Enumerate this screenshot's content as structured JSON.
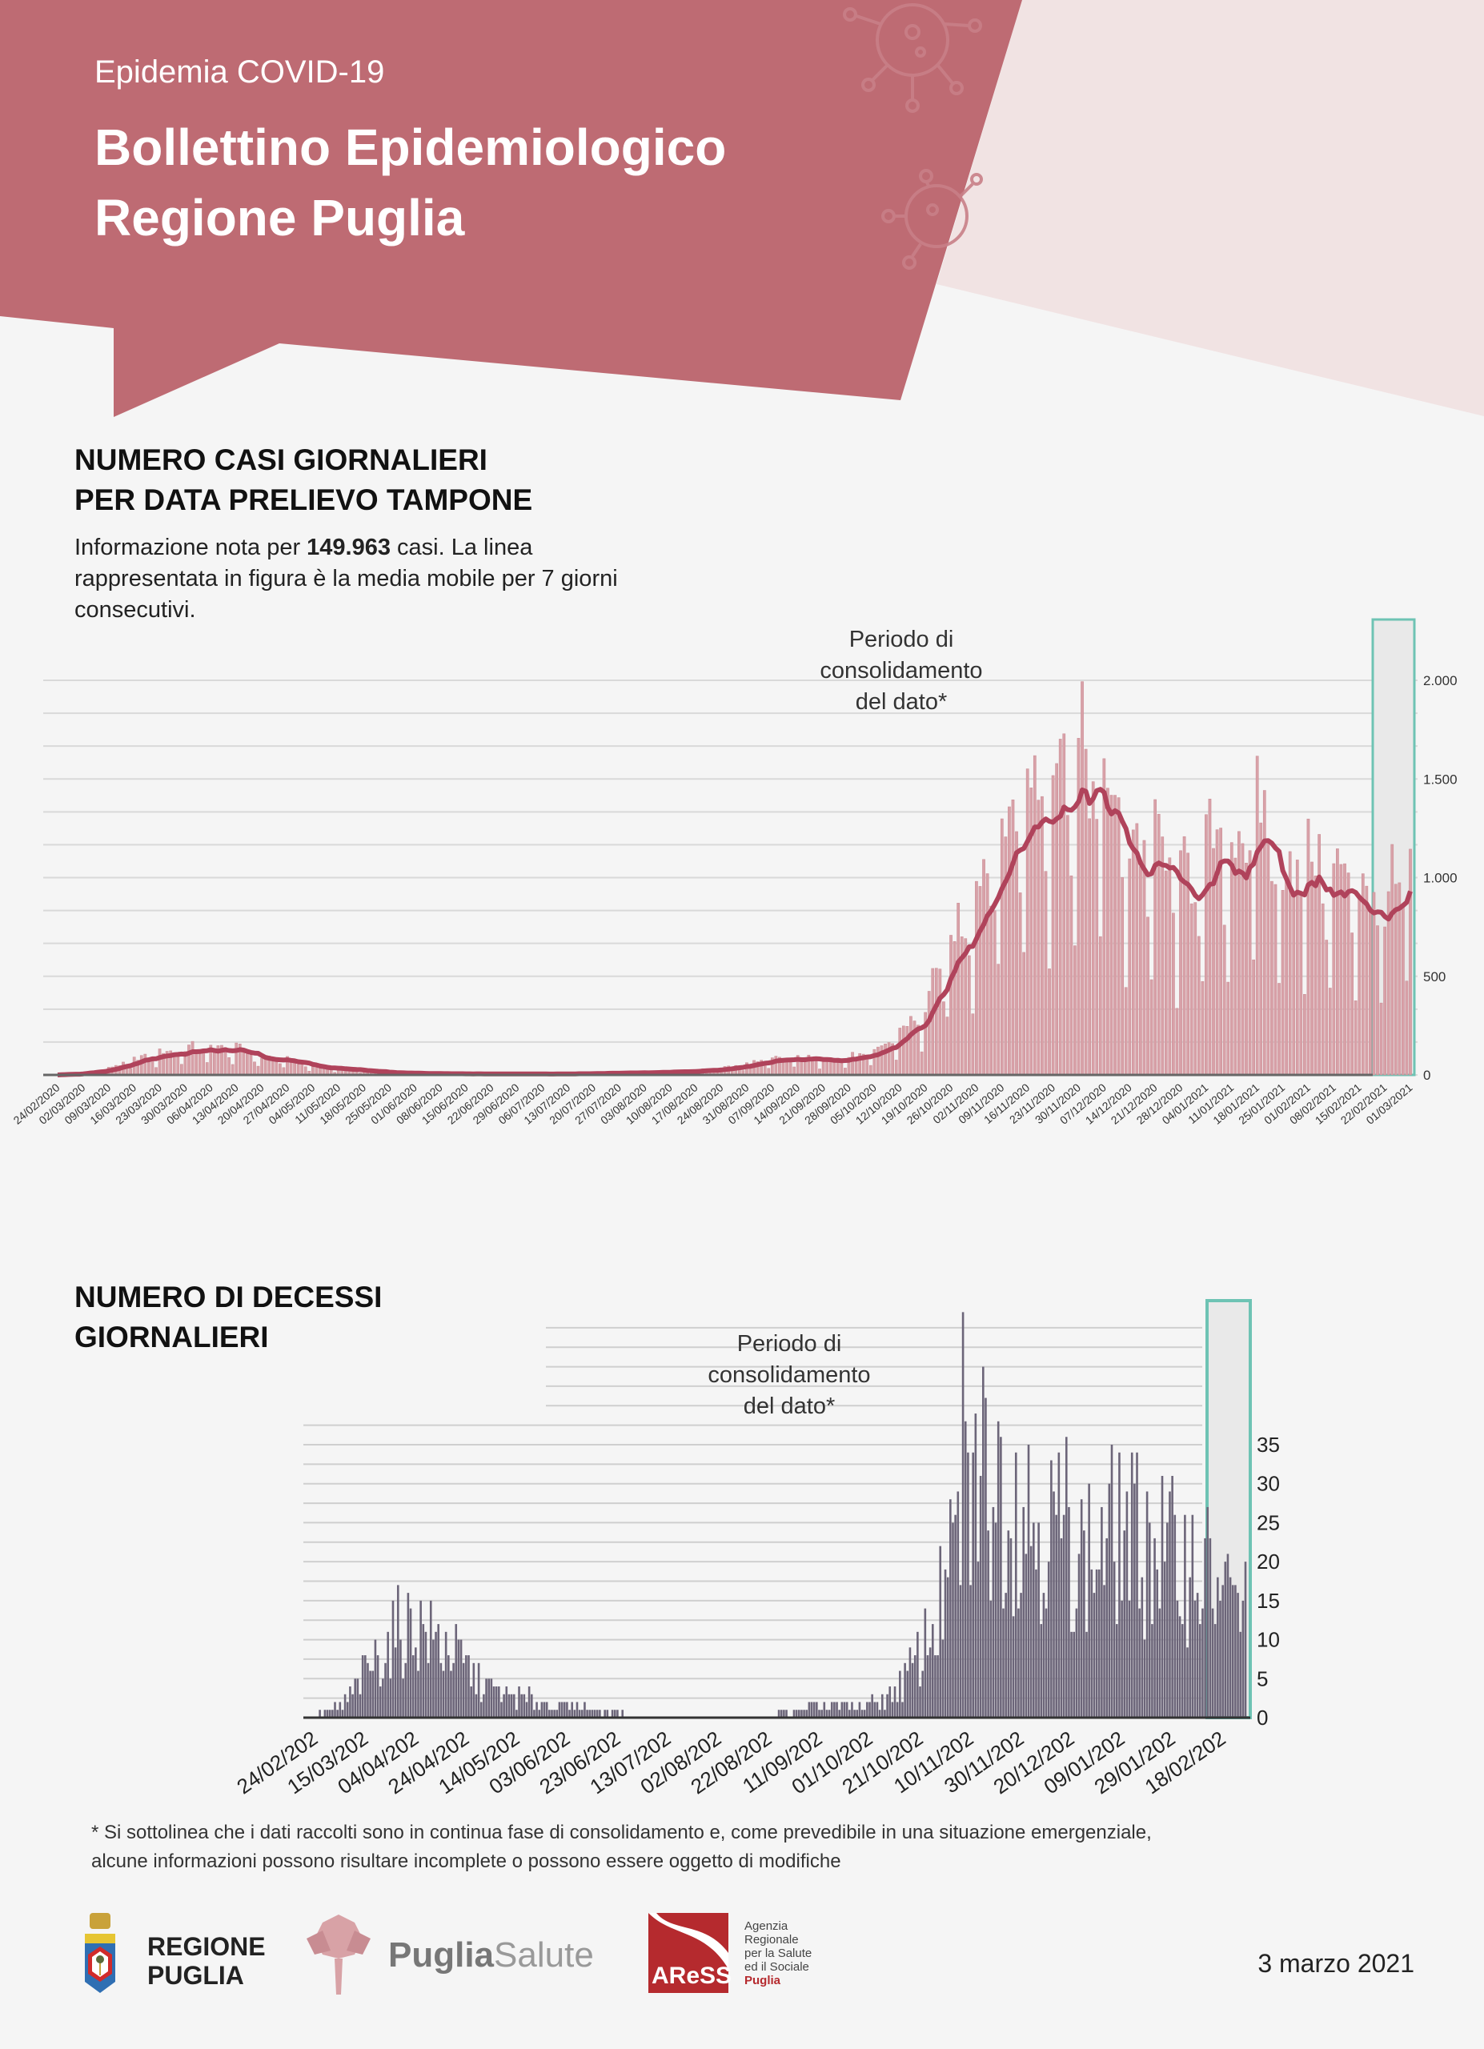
{
  "header": {
    "kicker": "Epidemia COVID-19",
    "title_line1": "Bollettino Epidemiologico",
    "title_line2": "Regione Puglia"
  },
  "colors": {
    "header_red": "#be6b73",
    "header_pink": "#f1e3e3",
    "background": "#f5f5f5",
    "cases_bar": "#d8a1a8",
    "cases_line": "#b0435b",
    "deaths_bar": "#6c6579",
    "consolidation_box": "#6ec3b4"
  },
  "cases_section": {
    "title_line1": "NUMERO CASI GIORNALIERI",
    "title_line2": "PER DATA PRELIEVO TAMPONE",
    "desc_prefix": "Informazione nota per ",
    "desc_total": "149.963",
    "desc_suffix": " casi. La linea rappresentata in figura è la media mobile per 7 giorni consecutivi.",
    "annotation": [
      "Periodo di",
      "consolidamento",
      "del dato*"
    ]
  },
  "deaths_section": {
    "title_line1": "NUMERO DI DECESSI",
    "title_line2": "GIORNALIERI",
    "annotation": [
      "Periodo di",
      "consolidamento",
      "del dato*"
    ]
  },
  "chart_data": [
    {
      "type": "bar",
      "title": "NUMERO CASI GIORNALIERI PER DATA PRELIEVO TAMPONE",
      "series_note": "daily bars with 7-day moving average line; weekly moving-average values (from 24/02/2020, step 7 days)",
      "start_date": "24/02/2020",
      "days": 372,
      "weekly_moving_average": [
        0,
        10,
        30,
        70,
        100,
        120,
        125,
        120,
        80,
        70,
        40,
        30,
        20,
        10,
        8,
        6,
        5,
        5,
        5,
        5,
        6,
        8,
        10,
        12,
        15,
        20,
        30,
        50,
        70,
        80,
        80,
        80,
        100,
        200,
        300,
        600,
        850,
        1100,
        1300,
        1430,
        1420,
        1350,
        1050,
        1050,
        850,
        1000,
        1050,
        1200,
        950,
        980,
        900,
        880,
        780,
        950
      ],
      "weekday_factors": [
        1.15,
        1.2,
        1.2,
        1.1,
        1.05,
        0.85,
        0.45
      ],
      "ylim": [
        0,
        2000
      ],
      "yticks": [
        0,
        500,
        1000,
        1500,
        2000
      ],
      "ytick_labels": [
        "0",
        "500",
        "1.000",
        "1.500",
        "2.000"
      ],
      "consolidation_days": 7,
      "xtick_labels": [
        "24/02/2020",
        "02/03/2020",
        "09/03/2020",
        "16/03/2020",
        "23/03/2020",
        "30/03/2020",
        "06/04/2020",
        "13/04/2020",
        "20/04/2020",
        "27/04/2020",
        "04/05/2020",
        "11/05/2020",
        "18/05/2020",
        "25/05/2020",
        "01/06/2020",
        "08/06/2020",
        "15/06/2020",
        "22/06/2020",
        "29/06/2020",
        "06/07/2020",
        "13/07/2020",
        "20/07/2020",
        "27/07/2020",
        "03/08/2020",
        "10/08/2020",
        "17/08/2020",
        "24/08/2020",
        "31/08/2020",
        "07/09/2020",
        "14/09/2020",
        "21/09/2020",
        "28/09/2020",
        "05/10/2020",
        "12/10/2020",
        "19/10/2020",
        "26/10/2020",
        "02/11/2020",
        "09/11/2020",
        "16/11/2020",
        "23/11/2020",
        "30/11/2020",
        "07/12/2020",
        "14/12/2020",
        "21/12/2020",
        "28/12/2020",
        "04/01/2021",
        "11/01/2021",
        "18/01/2021",
        "25/01/2021",
        "01/02/2021",
        "08/02/2021",
        "15/02/2021",
        "22/02/2021",
        "01/03/2021"
      ]
    },
    {
      "type": "bar",
      "title": "NUMERO DI DECESSI GIORNALIERI",
      "series_note": "daily deaths; weekly mean values (from 24/02/2020, step 7 days)",
      "start_date": "24/02/2020",
      "days": 372,
      "weekly_mean": [
        0.3,
        0.5,
        2,
        5,
        8,
        11,
        12,
        10,
        9,
        6,
        4,
        3,
        2.5,
        2,
        1.5,
        1.5,
        1,
        0.8,
        0.3,
        0.1,
        0,
        0,
        0.1,
        0.3,
        0.3,
        0.2,
        0.3,
        0.5,
        1,
        1.5,
        1.5,
        1.2,
        2,
        3,
        6,
        10,
        16,
        25,
        32,
        30,
        28,
        26,
        24,
        24,
        20,
        22,
        24,
        22,
        22,
        20,
        20,
        18,
        15,
        14
      ],
      "max_value": 52,
      "ylim": [
        0,
        35
      ],
      "yticks": [
        0,
        5,
        10,
        15,
        20,
        25,
        30,
        35
      ],
      "ytick_labels": [
        "0",
        "5",
        "10",
        "15",
        "20",
        "25",
        "30",
        "35"
      ],
      "consolidation_days": 10,
      "xtick_labels": [
        "24/02/202",
        "15/03/202",
        "04/04/202",
        "24/04/202",
        "14/05/202",
        "03/06/202",
        "23/06/202",
        "13/07/202",
        "02/08/202",
        "22/08/202",
        "11/09/202",
        "01/10/202",
        "21/10/202",
        "10/11/202",
        "30/11/202",
        "20/12/202",
        "09/01/202",
        "29/01/202",
        "18/02/202"
      ]
    }
  ],
  "footnote": {
    "line1": "* Si sottolinea che i dati raccolti sono in continua fase di consolidamento e, come prevedibile in una situazione emergenziale,",
    "line2": "alcune informazioni possono risultare incomplete o possono essere oggetto di modifiche"
  },
  "logos": {
    "regione_line1": "REGIONE",
    "regione_line2": "PUGLIA",
    "puglia": "Puglia",
    "salute": "Salute",
    "aress_mark": "AReSS",
    "aress_lines": [
      "Agenzia",
      "Regionale",
      "per la Salute",
      "ed il Sociale"
    ],
    "aress_region": "Puglia"
  },
  "date": "3 marzo 2021"
}
